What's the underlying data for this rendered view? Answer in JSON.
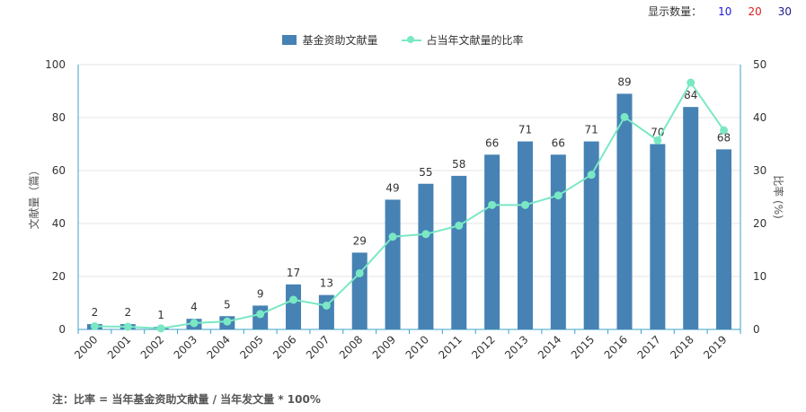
{
  "topbar": {
    "label": "显示数量：",
    "options": [
      {
        "label": "10",
        "color": "#1a1ad6"
      },
      {
        "label": "20",
        "color": "#e01e1e"
      },
      {
        "label": "30",
        "color": "#1a1a8c"
      }
    ]
  },
  "legend": {
    "bar_label": "基金资助文献量",
    "line_label": "占当年文献量的比率"
  },
  "colors": {
    "bar": "#4682b4",
    "line": "#7ae8c4",
    "axis": "#3aa3c8",
    "grid": "#e6e6e6"
  },
  "chart_data": {
    "type": "bar",
    "categories": [
      "2000",
      "2001",
      "2002",
      "2003",
      "2004",
      "2005",
      "2006",
      "2007",
      "2008",
      "2009",
      "2010",
      "2011",
      "2012",
      "2013",
      "2014",
      "2015",
      "2016",
      "2017",
      "2018",
      "2019"
    ],
    "series": [
      {
        "name": "基金资助文献量",
        "type": "bar",
        "axis": "left",
        "values": [
          2,
          2,
          1,
          4,
          5,
          9,
          17,
          13,
          29,
          49,
          55,
          58,
          66,
          71,
          66,
          71,
          89,
          70,
          84,
          68
        ]
      },
      {
        "name": "占当年文献量的比率",
        "type": "line",
        "axis": "right",
        "values": [
          0.6,
          0.5,
          0.2,
          1.2,
          1.5,
          2.9,
          5.6,
          4.5,
          10.6,
          17.5,
          18.0,
          19.6,
          23.5,
          23.5,
          25.3,
          29.2,
          40.1,
          35.7,
          46.6,
          37.6
        ]
      }
    ],
    "ylabel": "文献量（篇）",
    "y2label": "比率 (%)",
    "ylim": [
      0,
      100
    ],
    "y2lim": [
      0,
      50
    ],
    "yticks": [
      0,
      20,
      40,
      60,
      80,
      100
    ],
    "y2ticks": [
      0,
      10,
      20,
      30,
      40,
      50
    ],
    "grid": true,
    "legend_position": "top-center"
  },
  "footnote": "注：比率 = 当年基金资助文献量 / 当年发文量 * 100%"
}
